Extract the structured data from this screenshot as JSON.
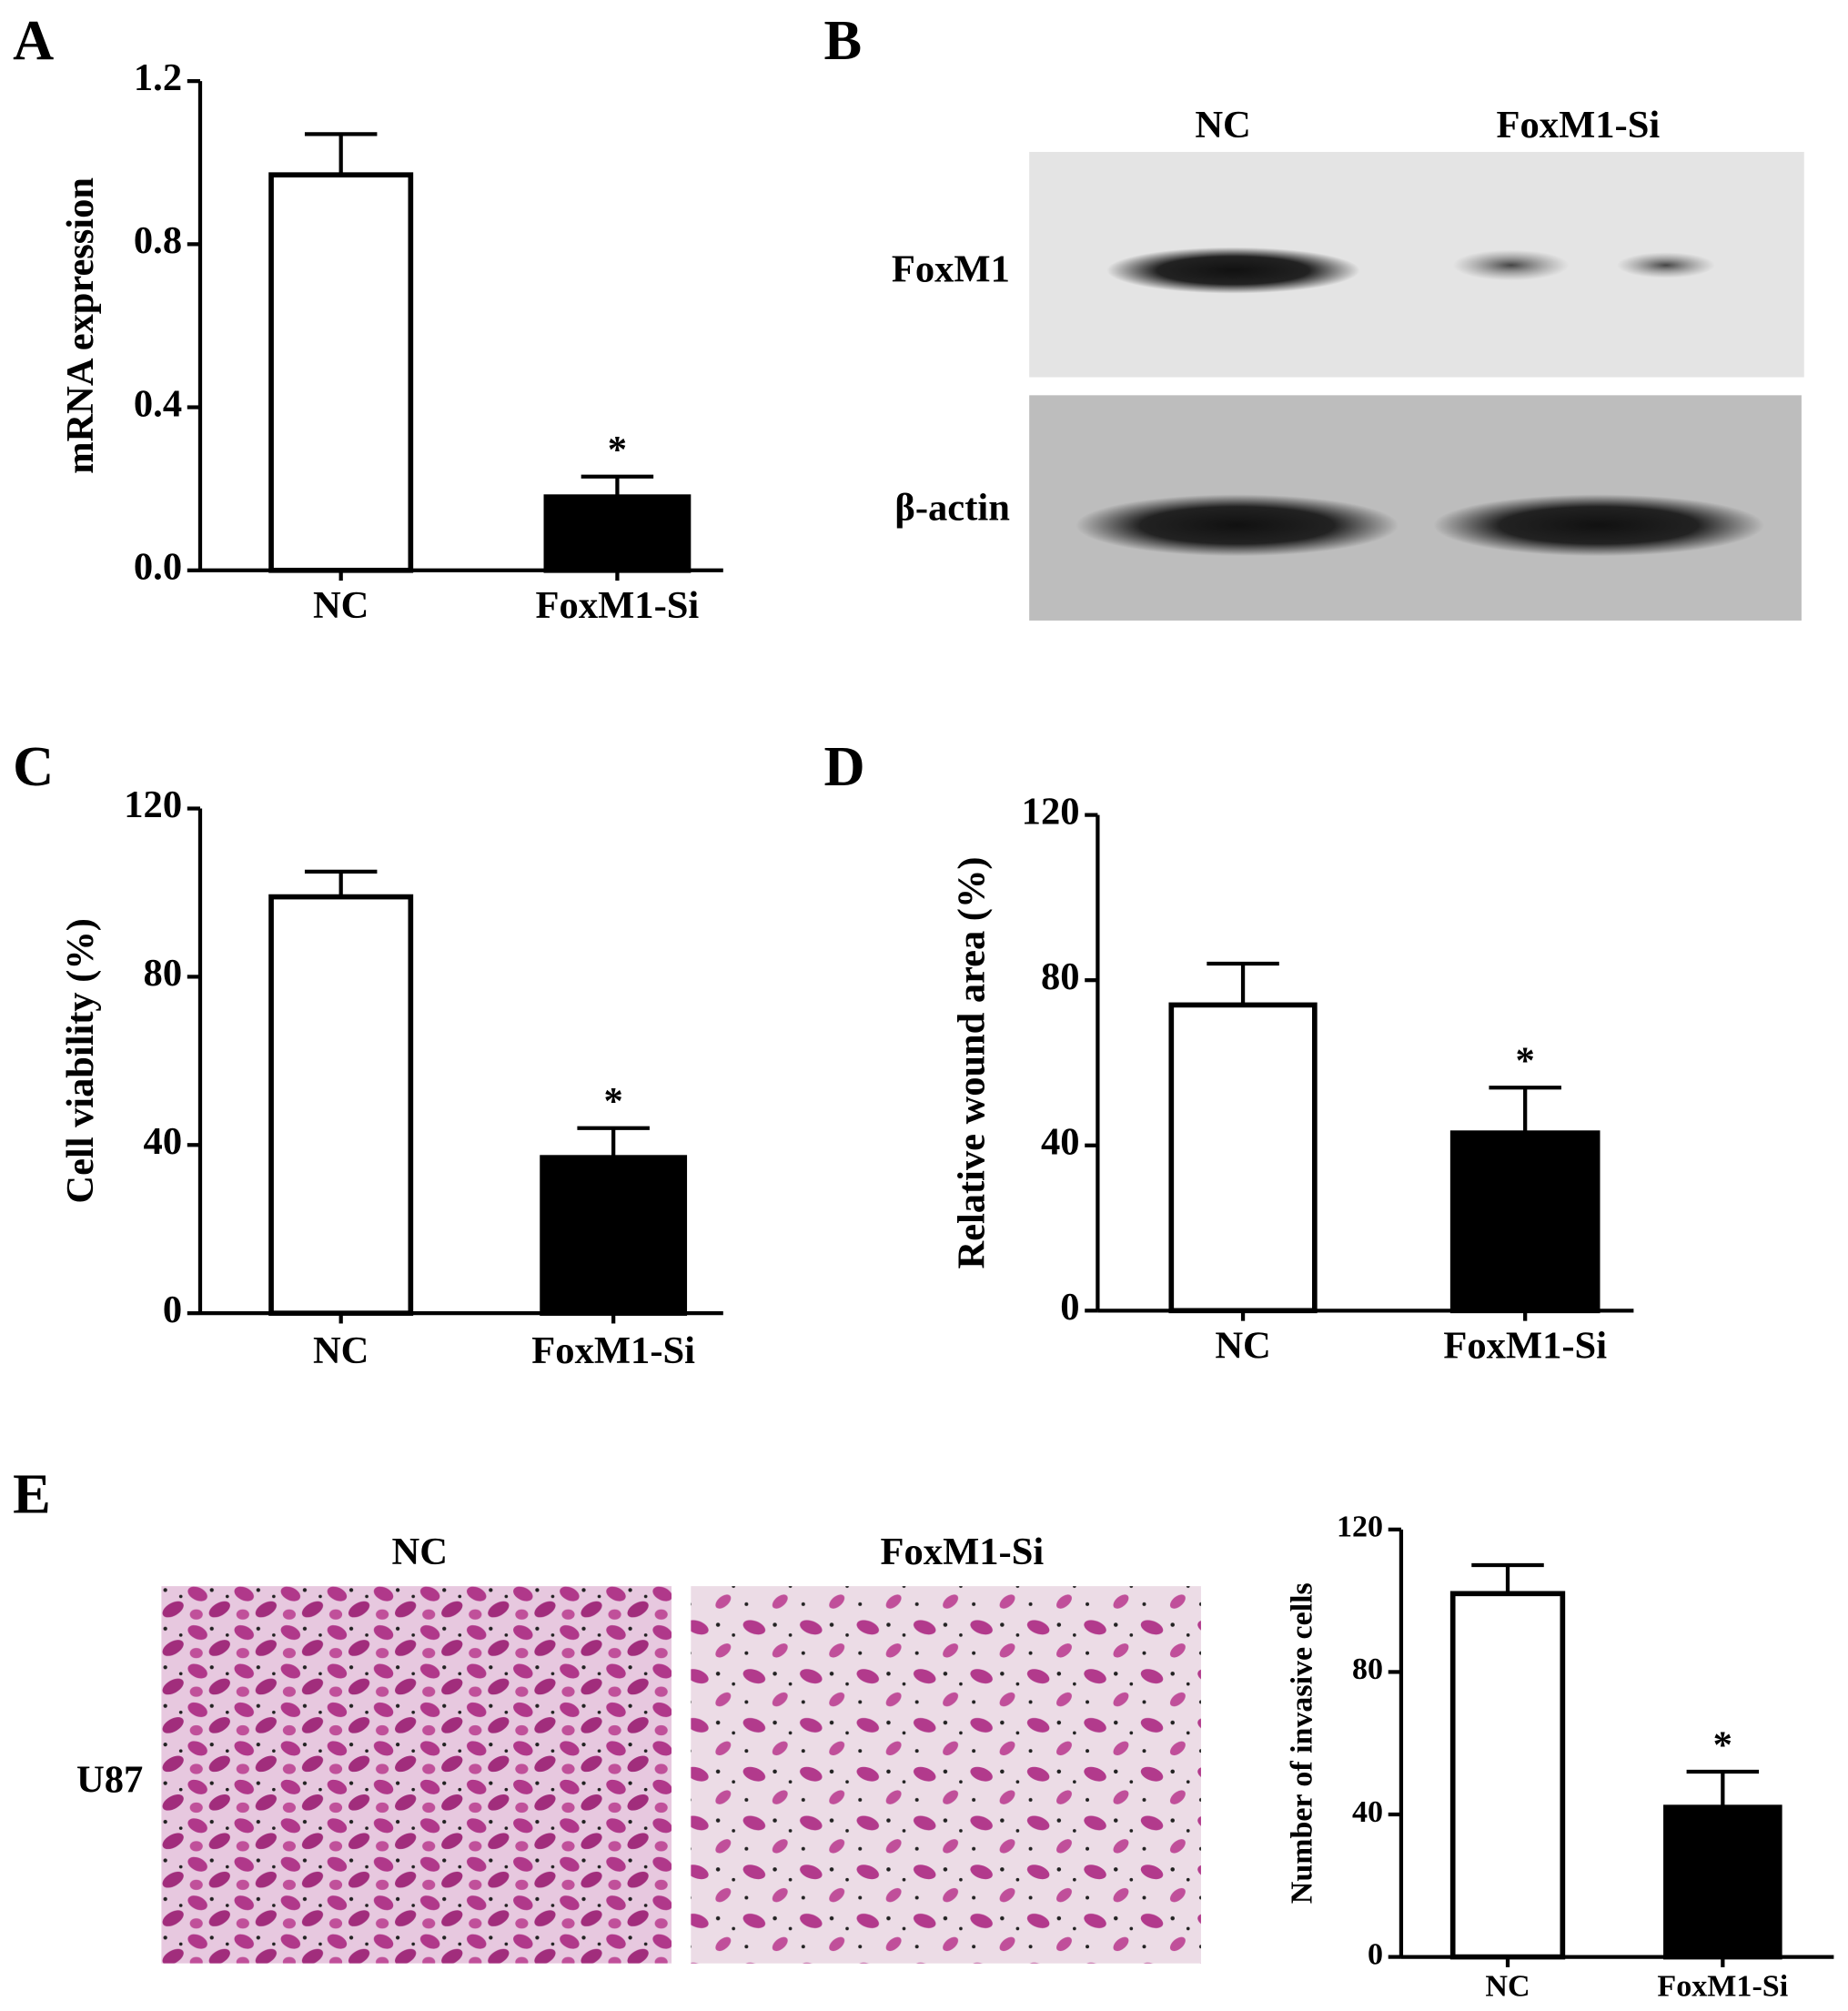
{
  "panel_labels": [
    "A",
    "B",
    "C",
    "D",
    "E"
  ],
  "blot": {
    "lanes": [
      "NC",
      "FoxM1-Si"
    ],
    "rows": [
      "FoxM1",
      "β-actin"
    ]
  },
  "micrographs": {
    "cell_line": "U87",
    "conditions": [
      "NC",
      "FoxM1-Si"
    ]
  },
  "chart_data": [
    {
      "type": "bar",
      "y_label": "mRNA expression",
      "categories": [
        "NC",
        "FoxM1-Si"
      ],
      "values": [
        0.97,
        0.18
      ],
      "errors": [
        0.1,
        0.05
      ],
      "colors": [
        "#ffffff",
        "#000000"
      ],
      "ylim": [
        0,
        1.2
      ],
      "yticks": [
        {
          "value": 0,
          "label": "0.0"
        },
        0.4,
        0.8,
        1.2
      ],
      "annotation": "*"
    },
    {
      "type": "bar",
      "y_label": "Cell viability (%)",
      "categories": [
        "NC",
        "FoxM1-Si"
      ],
      "values": [
        99,
        37
      ],
      "errors": [
        6,
        7
      ],
      "colors": [
        "#ffffff",
        "#000000"
      ],
      "ylim": [
        0,
        120
      ],
      "yticks": [
        0,
        40,
        80,
        120
      ],
      "annotation": "*"
    },
    {
      "type": "bar",
      "y_label": "Relative wound area (%)",
      "categories": [
        "NC",
        "FoxM1-Si"
      ],
      "values": [
        74,
        43
      ],
      "errors": [
        10,
        11
      ],
      "colors": [
        "#ffffff",
        "#000000"
      ],
      "ylim": [
        0,
        120
      ],
      "yticks": [
        0,
        40,
        80,
        120
      ],
      "annotation": "*"
    },
    {
      "type": "bar",
      "y_label": "Number of invasive cells",
      "categories": [
        "NC",
        "FoxM1-Si"
      ],
      "values": [
        102,
        42
      ],
      "errors": [
        8,
        10
      ],
      "colors": [
        "#ffffff",
        "#000000"
      ],
      "ylim": [
        0,
        120
      ],
      "yticks": [
        0,
        40,
        80,
        120
      ],
      "annotation": "*"
    }
  ]
}
